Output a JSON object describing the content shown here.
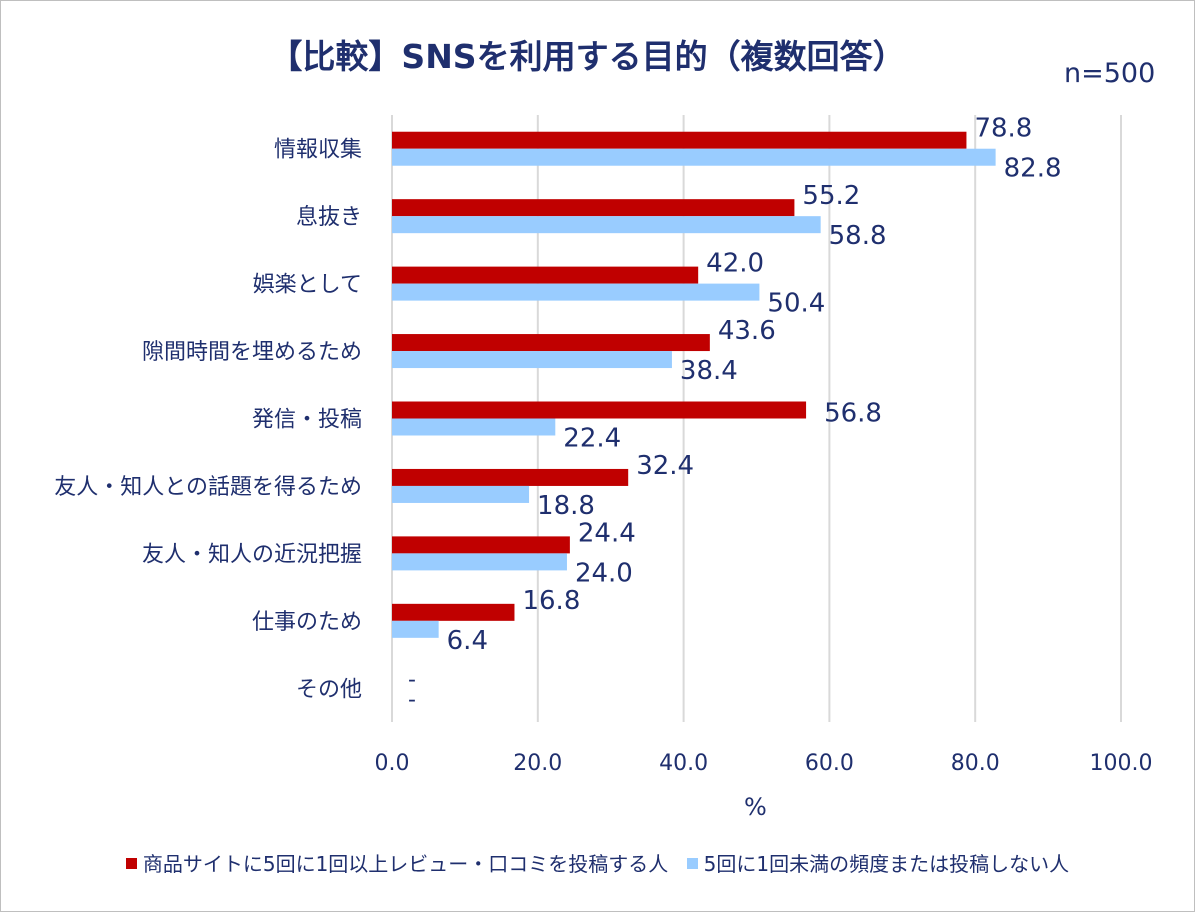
{
  "title": "【比較】SNSを利用する目的（複数回答）",
  "sample_size": "n=500",
  "colors": {
    "series1": "#c00000",
    "series2": "#99ccff",
    "text": "#1f2f6e",
    "grid": "#d9d9d9"
  },
  "chart_data": {
    "type": "bar",
    "orientation": "horizontal",
    "title": "【比較】SNSを利用する目的（複数回答）",
    "xlabel": "%",
    "ylabel": "",
    "xlim": [
      0,
      100
    ],
    "xticks": [
      "0.0",
      "20.0",
      "40.0",
      "60.0",
      "80.0",
      "100.0"
    ],
    "grid": true,
    "legend": "bottom",
    "categories": [
      "情報収集",
      "息抜き",
      "娯楽として",
      "隙間時間を埋めるため",
      "発信・投稿",
      "友人・知人との話題を得るため",
      "友人・知人の近況把握",
      "仕事のため",
      "その他"
    ],
    "series": [
      {
        "name": "商品サイトに5回に1回以上レビュー・口コミを投稿する人",
        "values": [
          78.8,
          55.2,
          42.0,
          43.6,
          56.8,
          32.4,
          24.4,
          16.8,
          null
        ],
        "labels": [
          "78.8",
          "55.2",
          "42.0",
          "43.6",
          "56.8",
          "32.4",
          "24.4",
          "16.8",
          "-"
        ]
      },
      {
        "name": "5回に1回未満の頻度または投稿しない人",
        "values": [
          82.8,
          58.8,
          50.4,
          38.4,
          22.4,
          18.8,
          24.0,
          6.4,
          null
        ],
        "labels": [
          "82.8",
          "58.8",
          "50.4",
          "38.4",
          "22.4",
          "18.8",
          "24.0",
          "6.4",
          "-"
        ]
      }
    ]
  }
}
